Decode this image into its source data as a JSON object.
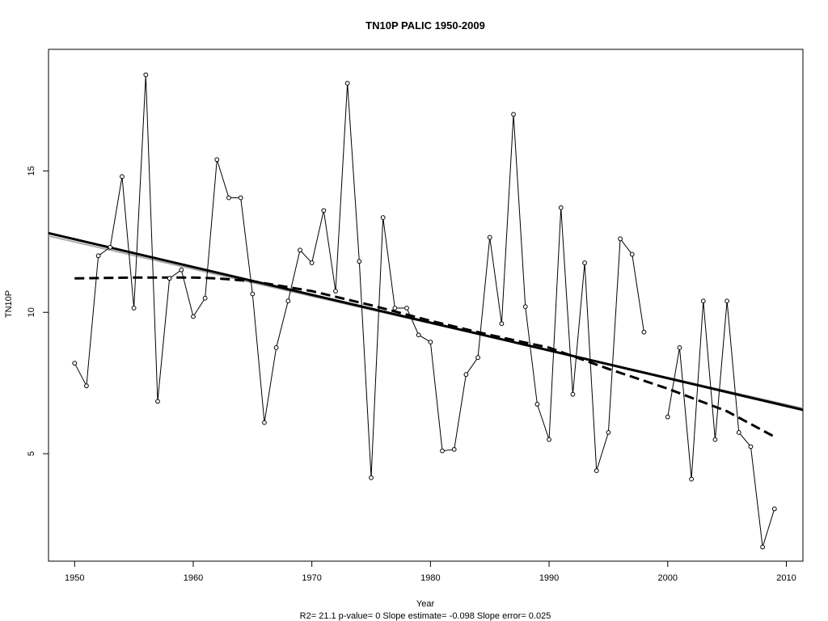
{
  "chart_data": {
    "type": "line",
    "title": "TN10P   PALIC 1950-2009",
    "xlabel": "Year",
    "ylabel": "TN10P",
    "stats_text": "R2= 21.1  p-value= 0  Slope estimate= -0.098  Slope error= 0.025",
    "xlim": [
      1947.8,
      2011.4
    ],
    "ylim": [
      1.2,
      19.3
    ],
    "x_ticks": [
      1950,
      1960,
      1970,
      1980,
      1990,
      2000,
      2010
    ],
    "y_ticks": [
      5,
      10,
      15
    ],
    "grid": false,
    "series": [
      {
        "style": "solid-thin-with-circles",
        "color": "#000000",
        "segments": [
          {
            "x": [
              1950,
              1951,
              1952,
              1953,
              1954,
              1955,
              1956,
              1957,
              1958,
              1959,
              1960,
              1961,
              1962,
              1963,
              1964,
              1965,
              1966,
              1967,
              1968,
              1969,
              1970,
              1971,
              1972,
              1973,
              1974,
              1975,
              1976,
              1977,
              1978,
              1979,
              1980,
              1981,
              1982,
              1983,
              1984,
              1985,
              1986,
              1987,
              1988,
              1989,
              1990,
              1991,
              1992,
              1993,
              1994,
              1995,
              1996,
              1997,
              1998
            ],
            "y": [
              8.2,
              7.4,
              12.0,
              12.3,
              14.8,
              10.15,
              18.4,
              6.85,
              11.2,
              11.5,
              9.85,
              10.5,
              15.4,
              14.05,
              14.05,
              10.65,
              6.1,
              8.75,
              10.4,
              12.2,
              11.75,
              13.6,
              10.75,
              18.1,
              11.8,
              4.15,
              13.35,
              10.15,
              10.15,
              9.2,
              8.95,
              5.1,
              5.15,
              7.8,
              8.4,
              12.65,
              9.6,
              17.0,
              10.2,
              6.75,
              5.5,
              13.7,
              7.1,
              11.75,
              4.4,
              5.75,
              12.6,
              12.05,
              9.3
            ]
          },
          {
            "x": [
              2000,
              2001,
              2002,
              2003,
              2004,
              2005,
              2006,
              2007,
              2008,
              2009
            ],
            "y": [
              6.3,
              8.75,
              4.1,
              10.4,
              5.5,
              10.4,
              5.75,
              5.25,
              1.7,
              3.05
            ]
          }
        ]
      },
      {
        "style": "linear-trend",
        "color": "#000000",
        "x": [
          1947.8,
          2011.4
        ],
        "y": [
          12.8,
          6.55
        ]
      },
      {
        "style": "linear-trend-gray",
        "color": "#aaaaaa",
        "x": [
          1947.8,
          2011.4
        ],
        "y": [
          12.7,
          6.6
        ]
      },
      {
        "style": "dashed-smooth",
        "color": "#000000",
        "x": [
          1950,
          1955,
          1960,
          1962,
          1965,
          1970,
          1975,
          1980,
          1985,
          1990,
          1995,
          2000,
          2005,
          2009
        ],
        "y": [
          11.2,
          11.23,
          11.23,
          11.2,
          11.1,
          10.75,
          10.25,
          9.7,
          9.2,
          8.75,
          8.0,
          7.3,
          6.5,
          5.6
        ]
      }
    ]
  }
}
